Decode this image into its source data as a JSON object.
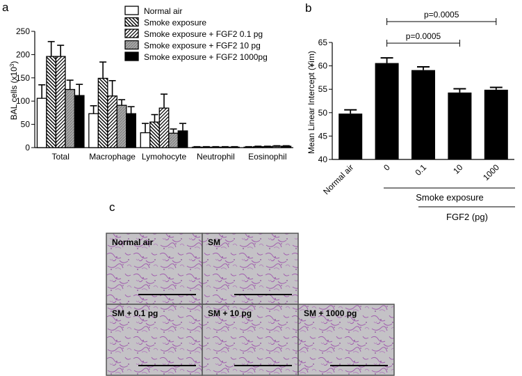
{
  "panel_labels": {
    "a": "a",
    "b": "b",
    "c": "c"
  },
  "chart_data": [
    {
      "type": "bar",
      "panel": "a",
      "ylabel_main": "BAL cells (x10",
      "ylabel_sup": "3",
      "ylabel_end": ")",
      "ylim": [
        0,
        250
      ],
      "yticks": [
        0,
        50,
        100,
        150,
        200,
        250
      ],
      "categories": [
        "Total",
        "Macrophage",
        "Lymohocyte",
        "Neutrophil",
        "Eosinophil"
      ],
      "legend_position": "top-right",
      "series": [
        {
          "name": "Normal air",
          "pattern": "white",
          "values": [
            106,
            73,
            32,
            1,
            1
          ],
          "errors": [
            29,
            17,
            20,
            1,
            1
          ]
        },
        {
          "name": "Smoke exposure",
          "pattern": "diagonal",
          "values": [
            196,
            149,
            55,
            1,
            2
          ],
          "errors": [
            32,
            35,
            16,
            1,
            1
          ]
        },
        {
          "name": "Smoke exposure + FGF2 0.1 pg",
          "pattern": "diagonal-dense",
          "values": [
            196,
            111,
            85,
            1,
            2
          ],
          "errors": [
            24,
            33,
            30,
            1,
            1
          ]
        },
        {
          "name": "Smoke exposure + FGF2 10 pg",
          "pattern": "gray",
          "values": [
            125,
            91,
            31,
            1,
            3
          ],
          "errors": [
            20,
            12,
            9,
            1,
            1
          ]
        },
        {
          "name": "Smoke exposure + FGF2 1000pg",
          "pattern": "black",
          "values": [
            112,
            73,
            36,
            1,
            3
          ],
          "errors": [
            24,
            15,
            16,
            1,
            1
          ]
        }
      ]
    },
    {
      "type": "bar",
      "panel": "b",
      "ylabel": "Mean Linear Intercept (¥ìm)",
      "ylim": [
        40,
        65
      ],
      "yticks": [
        40,
        45,
        50,
        55,
        60,
        65
      ],
      "categories": [
        "Normal air",
        "0",
        "0.1",
        "10",
        "1000"
      ],
      "values": [
        49.8,
        60.6,
        59.1,
        54.3,
        54.9
      ],
      "errors": [
        0.8,
        1.1,
        0.7,
        0.8,
        0.5
      ],
      "color": "#000000",
      "group_label_1": "Smoke exposure",
      "group_label_2": "FGF2 (pg)",
      "significance": [
        {
          "from": "0",
          "to": "10",
          "label": "p=0.0005"
        },
        {
          "from": "0",
          "to": "1000",
          "label": "p=0.0005"
        }
      ]
    }
  ],
  "micrographs": [
    {
      "label": "Normal air"
    },
    {
      "label": "SM"
    },
    {
      "label": "SM + 0.1 pg"
    },
    {
      "label": "SM + 10 pg"
    },
    {
      "label": "SM + 1000 pg"
    }
  ],
  "colors": {
    "tissue_bg": "#c4c2c6",
    "tissue_stain": "#a15fae",
    "scale_bar": "#000000"
  }
}
